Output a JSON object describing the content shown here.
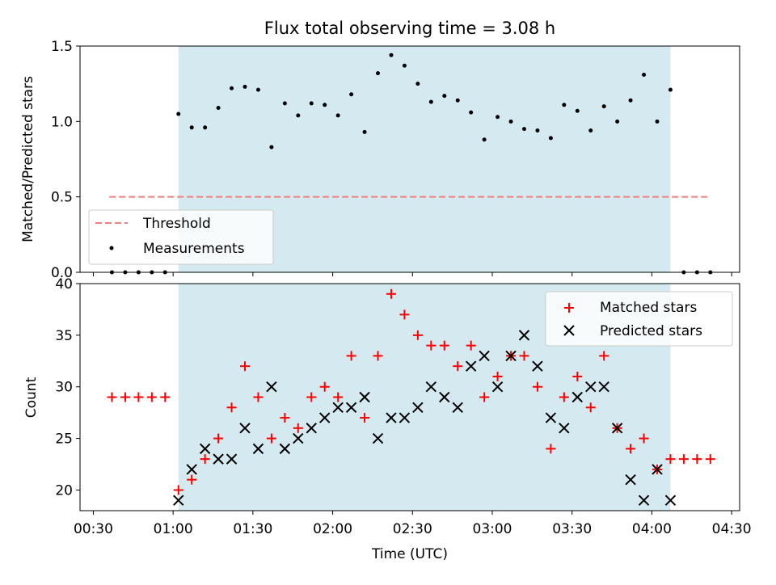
{
  "chart_data": [
    {
      "type": "scatter",
      "title": "Flux total observing time = 3.08 h",
      "xlabel": "",
      "ylabel": "Matched/Predicted stars",
      "ylim": [
        0,
        1.5
      ],
      "yticks": [
        "0.0",
        "0.5",
        "1.0",
        "1.5"
      ],
      "shaded_region": {
        "start": "01:02",
        "end": "04:07",
        "color": "#d4eaf0"
      },
      "legend": {
        "placement": "lower-left",
        "entries": [
          "Threshold",
          "Measurements"
        ]
      },
      "series": [
        {
          "name": "Threshold",
          "style": "dashed-line",
          "color": "#f08080",
          "x": [
            "00:36",
            "04:22"
          ],
          "y": [
            0.5,
            0.5
          ]
        },
        {
          "name": "Measurements",
          "style": "dot",
          "color": "#000000",
          "x": [
            "00:37",
            "00:42",
            "00:47",
            "00:52",
            "00:57",
            "01:02",
            "01:07",
            "01:12",
            "01:17",
            "01:22",
            "01:27",
            "01:32",
            "01:37",
            "01:42",
            "01:47",
            "01:52",
            "01:57",
            "02:02",
            "02:07",
            "02:12",
            "02:17",
            "02:22",
            "02:27",
            "02:32",
            "02:37",
            "02:42",
            "02:47",
            "02:52",
            "02:57",
            "03:02",
            "03:07",
            "03:12",
            "03:17",
            "03:22",
            "03:27",
            "03:32",
            "03:37",
            "03:42",
            "03:47",
            "03:52",
            "03:57",
            "04:02",
            "04:07",
            "04:12",
            "04:17",
            "04:22"
          ],
          "y": [
            0,
            0,
            0,
            0,
            0,
            1.05,
            0.96,
            0.96,
            1.09,
            1.22,
            1.23,
            1.21,
            0.83,
            1.12,
            1.04,
            1.12,
            1.11,
            1.04,
            1.18,
            0.93,
            1.32,
            1.44,
            1.37,
            1.25,
            1.13,
            1.17,
            1.14,
            1.06,
            0.88,
            1.03,
            1.0,
            0.95,
            0.94,
            0.89,
            1.11,
            1.07,
            0.94,
            1.1,
            1.0,
            1.14,
            1.31,
            1.0,
            1.21,
            0,
            0,
            0
          ]
        }
      ]
    },
    {
      "type": "scatter",
      "title": "",
      "xlabel": "Time (UTC)",
      "ylabel": "Count",
      "ylim": [
        18,
        40
      ],
      "yticks": [
        "20",
        "25",
        "30",
        "35",
        "40"
      ],
      "xticks": [
        "00:30",
        "01:00",
        "01:30",
        "02:00",
        "02:30",
        "03:00",
        "03:30",
        "04:00",
        "04:30"
      ],
      "xlim": [
        "00:25",
        "04:33"
      ],
      "shaded_region": {
        "start": "01:02",
        "end": "04:07",
        "color": "#d4eaf0"
      },
      "legend": {
        "placement": "top-right",
        "entries": [
          "Matched stars",
          "Predicted stars"
        ]
      },
      "series": [
        {
          "name": "Matched stars",
          "marker": "plus",
          "color": "#ff0000",
          "x": [
            "00:37",
            "00:42",
            "00:47",
            "00:52",
            "00:57",
            "01:02",
            "01:07",
            "01:12",
            "01:17",
            "01:22",
            "01:27",
            "01:32",
            "01:37",
            "01:42",
            "01:47",
            "01:52",
            "01:57",
            "02:02",
            "02:07",
            "02:12",
            "02:17",
            "02:22",
            "02:27",
            "02:32",
            "02:37",
            "02:42",
            "02:47",
            "02:52",
            "02:57",
            "03:02",
            "03:07",
            "03:12",
            "03:17",
            "03:22",
            "03:27",
            "03:32",
            "03:37",
            "03:42",
            "03:47",
            "03:52",
            "03:57",
            "04:02",
            "04:07",
            "04:12",
            "04:17",
            "04:22"
          ],
          "y": [
            29,
            29,
            29,
            29,
            29,
            20,
            21,
            23,
            25,
            28,
            32,
            29,
            25,
            27,
            26,
            29,
            30,
            29,
            33,
            27,
            33,
            39,
            37,
            35,
            34,
            34,
            32,
            34,
            29,
            31,
            33,
            33,
            30,
            24,
            29,
            31,
            28,
            33,
            26,
            24,
            25,
            22,
            23,
            23,
            23,
            23
          ]
        },
        {
          "name": "Predicted stars",
          "marker": "x",
          "color": "#000000",
          "x": [
            "01:02",
            "01:07",
            "01:12",
            "01:17",
            "01:22",
            "01:27",
            "01:32",
            "01:37",
            "01:42",
            "01:47",
            "01:52",
            "01:57",
            "02:02",
            "02:07",
            "02:12",
            "02:17",
            "02:22",
            "02:27",
            "02:32",
            "02:37",
            "02:42",
            "02:47",
            "02:52",
            "02:57",
            "03:02",
            "03:07",
            "03:12",
            "03:17",
            "03:22",
            "03:27",
            "03:32",
            "03:37",
            "03:42",
            "03:47",
            "03:52",
            "03:57",
            "04:02",
            "04:07"
          ],
          "y": [
            19,
            22,
            24,
            23,
            23,
            26,
            24,
            30,
            24,
            25,
            26,
            27,
            28,
            28,
            29,
            25,
            27,
            27,
            28,
            30,
            29,
            28,
            32,
            33,
            30,
            33,
            35,
            32,
            27,
            26,
            29,
            30,
            30,
            26,
            21,
            19,
            22,
            19
          ]
        }
      ]
    }
  ]
}
